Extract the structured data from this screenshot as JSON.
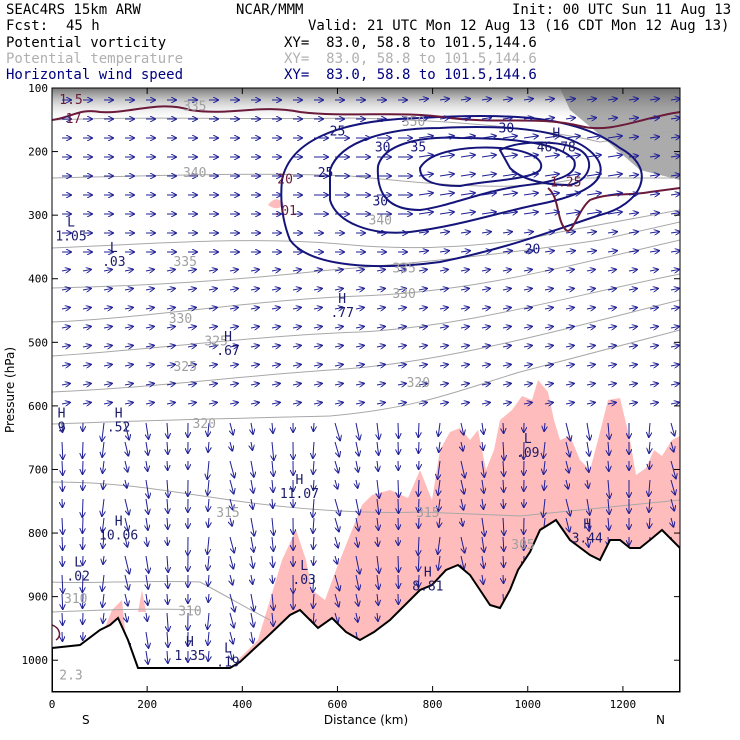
{
  "header": {
    "model": "SEAC4RS 15km ARW",
    "org": "NCAR/MMM",
    "init": "Init: 00 UTC Sun 11 Aug 13",
    "fcst_label": "Fcst:",
    "fcst_value": "45 h",
    "valid": "Valid: 21 UTC Mon 12 Aug 13 (16 CDT Mon 12 Aug 13)",
    "fields": [
      {
        "name": "Potential vorticity",
        "xy": "XY=  83.0, 58.8 to 101.5,144.6",
        "color": "#000000"
      },
      {
        "name": "Potential temperature",
        "xy": "XY=  83.0, 58.8 to 101.5,144.6",
        "color": "#b0b0b0"
      },
      {
        "name": "Horizontal wind speed",
        "xy": "XY=  83.0, 58.8 to 101.5,144.6",
        "color": "#000080"
      }
    ]
  },
  "colors": {
    "pv": "#ffbcbc",
    "pv_line": "#6b1a3a",
    "theta": "#a8a8a8",
    "wind": "#14147a",
    "vectors": "#1e1e96",
    "terrain": "#000000"
  },
  "chart_data": {
    "type": "cross-section",
    "xlabel": "Distance (km)",
    "ylabel": "Pressure (hPa)",
    "x_ticks": [
      "0",
      "200",
      "400",
      "600",
      "800",
      "1000",
      "1200"
    ],
    "y_ticks": [
      "100",
      "200",
      "300",
      "400",
      "500",
      "600",
      "700",
      "800",
      "900",
      "1000"
    ],
    "xlim": [
      0,
      1320
    ],
    "ylim": [
      1050,
      100
    ],
    "x_end_labels": {
      "left": "S",
      "right": "N"
    },
    "theta_labels": [
      {
        "text": "335",
        "x": 300,
        "p": 135
      },
      {
        "text": "350",
        "x": 760,
        "p": 160
      },
      {
        "text": "340",
        "x": 300,
        "p": 240
      },
      {
        "text": "340",
        "x": 690,
        "p": 315
      },
      {
        "text": "335",
        "x": 280,
        "p": 380
      },
      {
        "text": "335",
        "x": 740,
        "p": 390
      },
      {
        "text": "330",
        "x": 270,
        "p": 470
      },
      {
        "text": "330",
        "x": 740,
        "p": 430
      },
      {
        "text": "325",
        "x": 345,
        "p": 505
      },
      {
        "text": "325",
        "x": 280,
        "p": 545
      },
      {
        "text": "320",
        "x": 770,
        "p": 570
      },
      {
        "text": "320",
        "x": 320,
        "p": 635
      },
      {
        "text": "315",
        "x": 370,
        "p": 775
      },
      {
        "text": "315",
        "x": 790,
        "p": 775
      },
      {
        "text": "310",
        "x": 50,
        "p": 910
      },
      {
        "text": "310",
        "x": 290,
        "p": 930
      },
      {
        "text": "305",
        "x": 990,
        "p": 825
      },
      {
        "text": "2.3",
        "x": 40,
        "p": 1030
      }
    ],
    "wind_labels": [
      {
        "text": "25",
        "x": 600,
        "p": 175
      },
      {
        "text": "25",
        "x": 575,
        "p": 240
      },
      {
        "text": "30",
        "x": 695,
        "p": 200
      },
      {
        "text": "30",
        "x": 690,
        "p": 285
      },
      {
        "text": "35",
        "x": 770,
        "p": 200
      },
      {
        "text": "30",
        "x": 955,
        "p": 170
      },
      {
        "text": "20",
        "x": 1010,
        "p": 360
      }
    ],
    "pv_labels": [
      {
        "text": "1.5",
        "x": 40,
        "p": 125
      },
      {
        "text": "17",
        "x": 45,
        "p": 155
      },
      {
        "text": "20",
        "x": 490,
        "p": 250
      },
      {
        "text": ".01",
        "x": 490,
        "p": 300
      },
      {
        "text": "1.25",
        "x": 1080,
        "p": 255
      }
    ],
    "hl_marks": [
      {
        "letter": "L",
        "value": "1.05",
        "x": 40,
        "p": 340
      },
      {
        "letter": "L",
        "value": ".03",
        "x": 130,
        "p": 380
      },
      {
        "letter": "H",
        "value": ".77",
        "x": 610,
        "p": 460
      },
      {
        "letter": "H",
        "value": ".67",
        "x": 370,
        "p": 520
      },
      {
        "letter": "H",
        "value": ".52",
        "x": 140,
        "p": 640
      },
      {
        "letter": "H",
        "value": "9",
        "x": 20,
        "p": 640
      },
      {
        "letter": "L",
        "value": ".09",
        "x": 1000,
        "p": 680
      },
      {
        "letter": "H",
        "value": "11.07",
        "x": 520,
        "p": 745
      },
      {
        "letter": "H",
        "value": "10.06",
        "x": 140,
        "p": 810
      },
      {
        "letter": "H",
        "value": "3.44",
        "x": 1125,
        "p": 815
      },
      {
        "letter": "L",
        "value": ".02",
        "x": 55,
        "p": 875
      },
      {
        "letter": "L",
        "value": ".03",
        "x": 530,
        "p": 880
      },
      {
        "letter": "H",
        "value": "8.81",
        "x": 790,
        "p": 890
      },
      {
        "letter": "H",
        "value": "1.35",
        "x": 290,
        "p": 1000
      },
      {
        "letter": "L",
        "value": ".19",
        "x": 370,
        "p": 1010
      },
      {
        "letter": "H",
        "value": "46.78",
        "x": 1060,
        "p": 200
      }
    ]
  }
}
